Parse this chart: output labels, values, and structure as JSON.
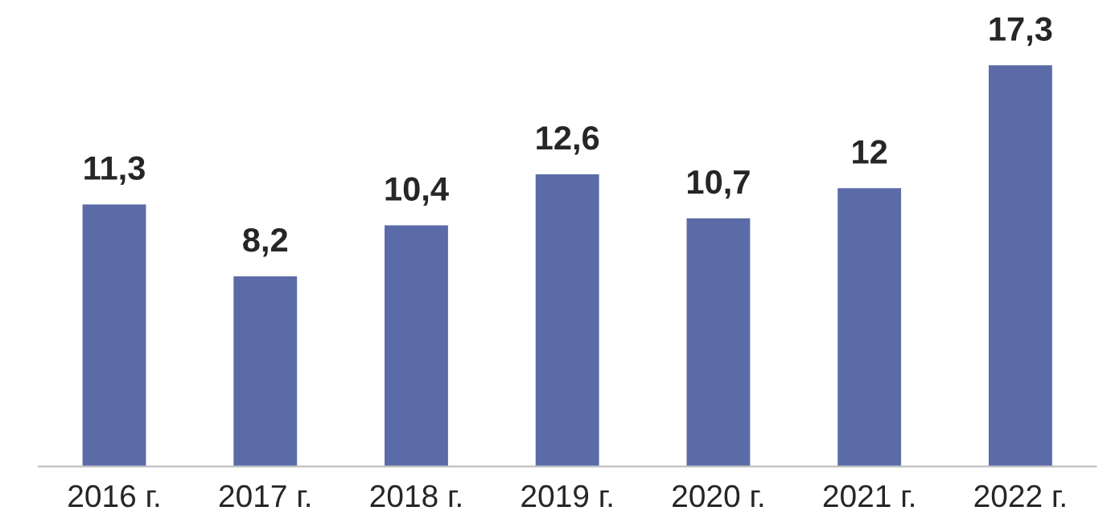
{
  "chart_data": {
    "type": "bar",
    "categories": [
      "2016 г.",
      "2017 г.",
      "2018 г.",
      "2019 г.",
      "2020 г.",
      "2021 г.",
      "2022 г."
    ],
    "values": [
      11.3,
      8.2,
      10.4,
      12.6,
      10.7,
      12,
      17.3
    ],
    "value_labels": [
      "11,3",
      "8,2",
      "10,4",
      "12,6",
      "10,7",
      "12",
      "17,3"
    ],
    "color": "#5b6ba8",
    "grid": false,
    "legend": false
  }
}
